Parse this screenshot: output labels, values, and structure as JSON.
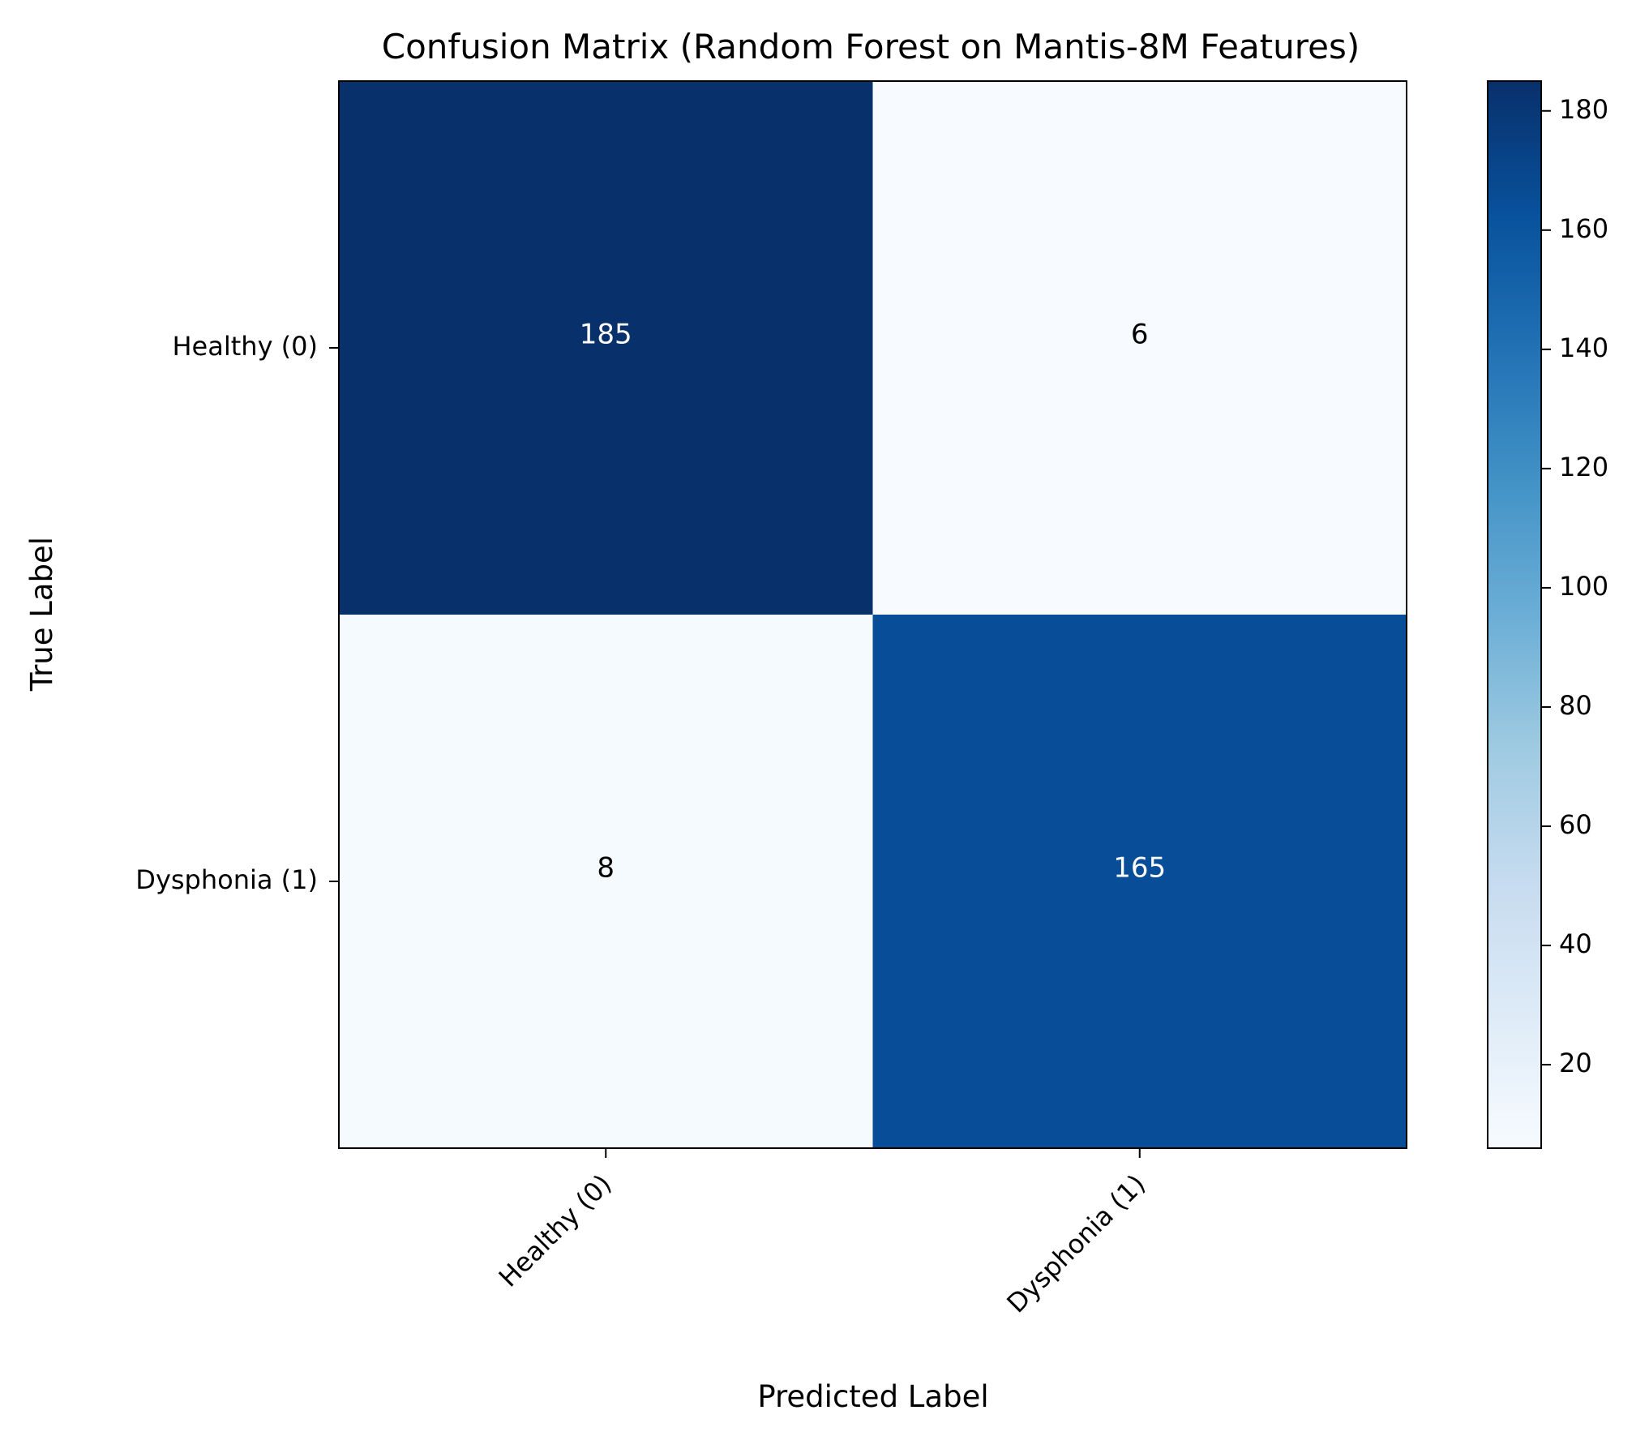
{
  "chart_data": {
    "type": "heatmap",
    "title": "Confusion Matrix (Random Forest on Mantis-8M Features)",
    "xlabel": "Predicted Label",
    "ylabel": "True Label",
    "x_categories": [
      "Healthy (0)",
      "Dysphonia (1)"
    ],
    "y_categories": [
      "Healthy (0)",
      "Dysphonia (1)"
    ],
    "matrix": [
      [
        185,
        6
      ],
      [
        8,
        165
      ]
    ],
    "colormap": "Blues",
    "colorbar": {
      "min": 6,
      "max": 185,
      "ticks": [
        20,
        40,
        60,
        80,
        100,
        120,
        140,
        160,
        180
      ]
    },
    "grid": false,
    "colors": {
      "dark_text": "#000000",
      "light_text": "#ffffff",
      "frame": "#000000"
    }
  }
}
